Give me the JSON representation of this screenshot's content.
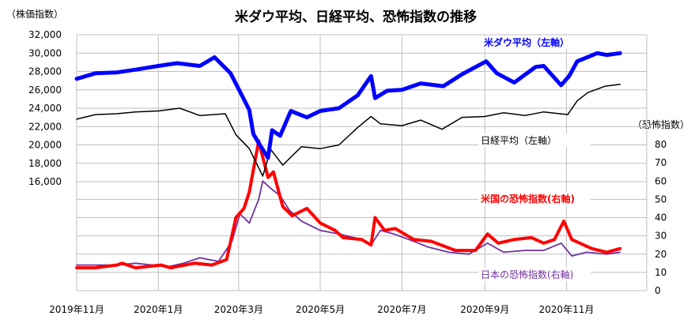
{
  "chart_data": {
    "type": "line",
    "title": "米ダウ平均、日経平均、恐怖指数の推移",
    "y_left_unit": "（株価指数）",
    "y_right_unit": "（恐怖指数）",
    "y_left_ticks": [
      "32,000",
      "30,000",
      "28,000",
      "26,000",
      "24,000",
      "22,000",
      "20,000",
      "18,000",
      "16,000"
    ],
    "y_right_ticks": [
      "80",
      "70",
      "60",
      "50",
      "40",
      "30",
      "20",
      "10",
      "0"
    ],
    "x_tick_labels": [
      "2019年11月",
      "2020年1月",
      "2020年3月",
      "2020年5月",
      "2020年7月",
      "2020年9月",
      "2020年11月"
    ],
    "ylim_left": [
      16000,
      32000
    ],
    "ylim_right": [
      0,
      80
    ],
    "x_start": "2019-11-01",
    "x_end": "2020-12-31",
    "grid": true,
    "series": [
      {
        "name": "米ダウ平均（左軸）",
        "axis": "left",
        "color": "#0000ff",
        "points": [
          [
            "2019-11-01",
            27200
          ],
          [
            "2019-11-15",
            27800
          ],
          [
            "2019-12-01",
            27900
          ],
          [
            "2019-12-15",
            28200
          ],
          [
            "2020-01-01",
            28600
          ],
          [
            "2020-01-15",
            28900
          ],
          [
            "2020-02-01",
            28600
          ],
          [
            "2020-02-12",
            29550
          ],
          [
            "2020-02-24",
            27800
          ],
          [
            "2020-03-01",
            26100
          ],
          [
            "2020-03-09",
            23800
          ],
          [
            "2020-03-12",
            21200
          ],
          [
            "2020-03-16",
            20200
          ],
          [
            "2020-03-23",
            18600
          ],
          [
            "2020-03-26",
            21600
          ],
          [
            "2020-04-01",
            21000
          ],
          [
            "2020-04-09",
            23700
          ],
          [
            "2020-04-21",
            23000
          ],
          [
            "2020-05-01",
            23700
          ],
          [
            "2020-05-15",
            24000
          ],
          [
            "2020-05-29",
            25400
          ],
          [
            "2020-06-08",
            27500
          ],
          [
            "2020-06-11",
            25100
          ],
          [
            "2020-06-20",
            25900
          ],
          [
            "2020-07-01",
            26000
          ],
          [
            "2020-07-15",
            26700
          ],
          [
            "2020-08-01",
            26400
          ],
          [
            "2020-08-15",
            27700
          ],
          [
            "2020-09-02",
            29100
          ],
          [
            "2020-09-10",
            27800
          ],
          [
            "2020-09-23",
            26800
          ],
          [
            "2020-10-09",
            28500
          ],
          [
            "2020-10-15",
            28600
          ],
          [
            "2020-10-28",
            26500
          ],
          [
            "2020-11-03",
            27500
          ],
          [
            "2020-11-09",
            29100
          ],
          [
            "2020-11-24",
            30000
          ],
          [
            "2020-12-01",
            29800
          ],
          [
            "2020-12-11",
            30000
          ]
        ]
      },
      {
        "name": "日経平均（左軸）",
        "axis": "left",
        "color": "#000000",
        "points": [
          [
            "2019-11-01",
            22800
          ],
          [
            "2019-11-15",
            23300
          ],
          [
            "2019-12-01",
            23400
          ],
          [
            "2019-12-15",
            23600
          ],
          [
            "2020-01-01",
            23700
          ],
          [
            "2020-01-17",
            24000
          ],
          [
            "2020-02-01",
            23200
          ],
          [
            "2020-02-20",
            23400
          ],
          [
            "2020-02-28",
            21100
          ],
          [
            "2020-03-09",
            19600
          ],
          [
            "2020-03-19",
            16600
          ],
          [
            "2020-03-25",
            19500
          ],
          [
            "2020-04-03",
            17800
          ],
          [
            "2020-04-17",
            19800
          ],
          [
            "2020-05-01",
            19600
          ],
          [
            "2020-05-15",
            20000
          ],
          [
            "2020-05-29",
            21900
          ],
          [
            "2020-06-08",
            23100
          ],
          [
            "2020-06-15",
            22300
          ],
          [
            "2020-07-01",
            22100
          ],
          [
            "2020-07-15",
            22700
          ],
          [
            "2020-07-31",
            21700
          ],
          [
            "2020-08-15",
            23000
          ],
          [
            "2020-09-01",
            23100
          ],
          [
            "2020-09-15",
            23500
          ],
          [
            "2020-10-01",
            23200
          ],
          [
            "2020-10-15",
            23600
          ],
          [
            "2020-11-02",
            23300
          ],
          [
            "2020-11-09",
            24800
          ],
          [
            "2020-11-17",
            25700
          ],
          [
            "2020-11-30",
            26400
          ],
          [
            "2020-12-11",
            26600
          ]
        ]
      },
      {
        "name": "米国の恐怖指数(右軸)",
        "axis": "right",
        "color": "#ff0000",
        "points": [
          [
            "2019-11-01",
            12.5
          ],
          [
            "2019-11-15",
            12.5
          ],
          [
            "2019-12-01",
            14
          ],
          [
            "2019-12-05",
            15
          ],
          [
            "2019-12-15",
            12.5
          ],
          [
            "2020-01-03",
            14
          ],
          [
            "2020-01-10",
            12.5
          ],
          [
            "2020-01-28",
            15
          ],
          [
            "2020-02-10",
            14
          ],
          [
            "2020-02-21",
            17
          ],
          [
            "2020-02-28",
            40
          ],
          [
            "2020-03-05",
            45
          ],
          [
            "2020-03-09",
            54
          ],
          [
            "2020-03-16",
            82
          ],
          [
            "2020-03-18",
            76
          ],
          [
            "2020-03-23",
            62
          ],
          [
            "2020-03-27",
            65
          ],
          [
            "2020-04-03",
            46
          ],
          [
            "2020-04-10",
            41
          ],
          [
            "2020-04-21",
            45
          ],
          [
            "2020-05-01",
            37
          ],
          [
            "2020-05-12",
            33
          ],
          [
            "2020-05-18",
            29
          ],
          [
            "2020-06-01",
            28
          ],
          [
            "2020-06-08",
            25
          ],
          [
            "2020-06-11",
            40
          ],
          [
            "2020-06-18",
            33
          ],
          [
            "2020-06-26",
            34
          ],
          [
            "2020-07-10",
            28
          ],
          [
            "2020-07-23",
            27
          ],
          [
            "2020-08-10",
            22
          ],
          [
            "2020-08-25",
            22
          ],
          [
            "2020-09-03",
            31
          ],
          [
            "2020-09-11",
            26
          ],
          [
            "2020-09-23",
            28
          ],
          [
            "2020-10-06",
            29
          ],
          [
            "2020-10-15",
            26
          ],
          [
            "2020-10-23",
            28
          ],
          [
            "2020-10-30",
            38
          ],
          [
            "2020-11-05",
            28
          ],
          [
            "2020-11-20",
            23
          ],
          [
            "2020-12-01",
            21
          ],
          [
            "2020-12-11",
            23
          ]
        ]
      },
      {
        "name": "日本の恐怖指数(右軸)",
        "axis": "right",
        "color": "#7030a0",
        "points": [
          [
            "2019-11-01",
            14
          ],
          [
            "2019-11-15",
            14
          ],
          [
            "2019-12-01",
            14
          ],
          [
            "2019-12-15",
            15
          ],
          [
            "2020-01-08",
            13
          ],
          [
            "2020-01-20",
            15
          ],
          [
            "2020-02-01",
            18
          ],
          [
            "2020-02-15",
            16
          ],
          [
            "2020-02-25",
            27
          ],
          [
            "2020-03-02",
            42
          ],
          [
            "2020-03-09",
            37
          ],
          [
            "2020-03-16",
            50
          ],
          [
            "2020-03-19",
            60
          ],
          [
            "2020-03-25",
            56
          ],
          [
            "2020-04-01",
            52
          ],
          [
            "2020-04-08",
            44
          ],
          [
            "2020-04-17",
            38
          ],
          [
            "2020-05-01",
            33
          ],
          [
            "2020-05-15",
            31
          ],
          [
            "2020-06-01",
            28
          ],
          [
            "2020-06-08",
            25
          ],
          [
            "2020-06-15",
            33
          ],
          [
            "2020-06-25",
            31
          ],
          [
            "2020-07-10",
            27
          ],
          [
            "2020-07-20",
            24
          ],
          [
            "2020-08-05",
            21
          ],
          [
            "2020-08-20",
            20
          ],
          [
            "2020-09-03",
            26
          ],
          [
            "2020-09-15",
            21
          ],
          [
            "2020-10-01",
            22
          ],
          [
            "2020-10-15",
            22
          ],
          [
            "2020-10-28",
            26
          ],
          [
            "2020-11-05",
            19
          ],
          [
            "2020-11-16",
            21
          ],
          [
            "2020-12-01",
            20
          ],
          [
            "2020-12-11",
            21
          ]
        ]
      }
    ]
  }
}
